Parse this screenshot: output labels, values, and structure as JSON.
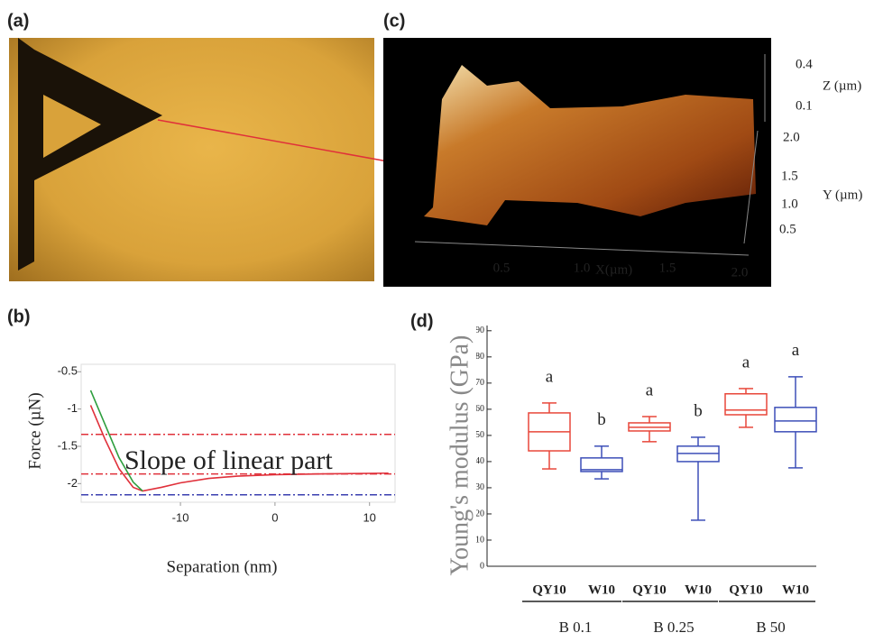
{
  "panels": {
    "a": {
      "label": "(a)"
    },
    "c": {
      "label": "(c)",
      "z_ticks": [
        "0.4",
        "0.1"
      ],
      "z_title": "Z (µm)",
      "y_ticks": [
        "2.0",
        "1.5",
        "1.0",
        "0.5"
      ],
      "y_title": "Y (µm)",
      "x_ticks": [
        "0.5",
        "1.0",
        "1.5",
        "2.0"
      ],
      "x_title": "X(µm)"
    }
  },
  "chart_data": [
    {
      "type": "line",
      "panel_label": "(b)",
      "x_label": "Separation (nm)",
      "y_label": "Force (µN)",
      "annotation": "Slope of linear part",
      "xlim": [
        -20.5,
        12.7
      ],
      "ylim": [
        -2.25,
        -0.4
      ],
      "xticks": [
        -10,
        0,
        10
      ],
      "yticks": [
        -0.5,
        -1,
        -1.5,
        -2
      ],
      "hlines": [
        {
          "value": -1.34,
          "color": "#e0303a"
        },
        {
          "value": -1.87,
          "color": "#e0303a"
        },
        {
          "value": -2.15,
          "color": "#3a3fb0"
        }
      ],
      "series": [
        {
          "color": "#e0303a",
          "x": [
            -19.5,
            -18,
            -16.5,
            -15,
            -14,
            -12,
            -10,
            -7,
            -4,
            0,
            5,
            12
          ],
          "values": [
            -0.95,
            -1.4,
            -1.8,
            -2.05,
            -2.1,
            -2.05,
            -1.99,
            -1.93,
            -1.9,
            -1.88,
            -1.87,
            -1.86
          ]
        },
        {
          "color": "#2e9e3e",
          "x": [
            -19.5,
            -18,
            -16.5,
            -15,
            -14
          ],
          "values": [
            -0.75,
            -1.2,
            -1.65,
            -1.98,
            -2.1
          ]
        }
      ]
    },
    {
      "type": "box",
      "panel_label": "(d)",
      "y_label": "Young's modulus (GPa)",
      "categories": [
        "QY10",
        "W10",
        "QY10",
        "W10",
        "QY10",
        "W10"
      ],
      "groups": [
        "B 0.1",
        "B 0.25",
        "B 50"
      ],
      "annotations": [
        "a",
        "b",
        "a",
        "b",
        "a",
        "a"
      ],
      "box_colors": [
        "#e8473a",
        "#3d4fb8",
        "#e8473a",
        "#3d4fb8",
        "#e8473a",
        "#3d4fb8"
      ],
      "ylim": [
        0,
        92
      ],
      "yticks": [
        0,
        10,
        20,
        30,
        40,
        50,
        60,
        70,
        80,
        90
      ],
      "min": [
        37.2,
        33.4,
        47.6,
        17.6,
        53.1,
        37.6
      ],
      "q1": [
        44.1,
        36.2,
        51.7,
        40,
        57.9,
        51.4
      ],
      "median": [
        51.4,
        36.9,
        53.1,
        43.1,
        59.7,
        55.5
      ],
      "q3": [
        58.6,
        41.4,
        54.8,
        45.9,
        65.9,
        60.7
      ],
      "max": [
        62.4,
        45.9,
        57.2,
        49.3,
        67.9,
        72.4
      ]
    }
  ]
}
